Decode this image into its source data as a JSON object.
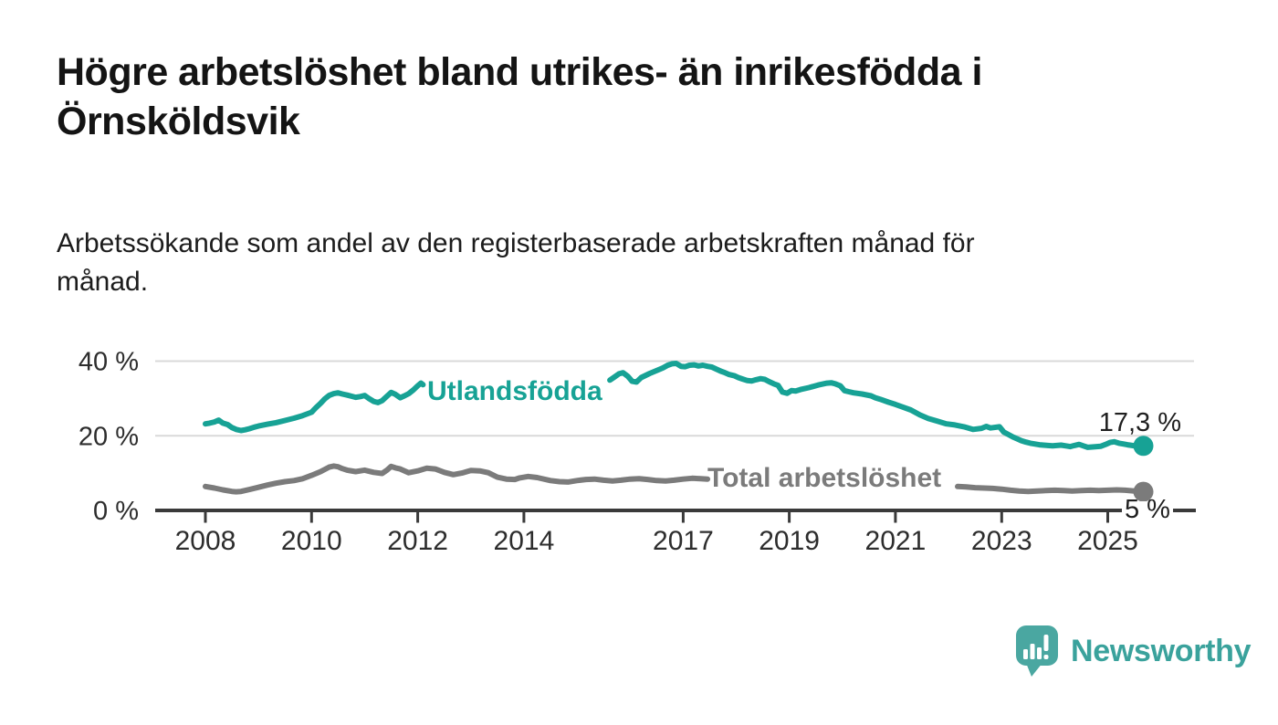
{
  "header": {
    "title": "Högre arbetslöshet bland utrikes- än inrikesfödda i\nÖrnsköldsvik",
    "subtitle": "Arbetssökande som andel av den registerbaserade arbetskraften månad för\nmånad."
  },
  "footer": {
    "brand": "Newsworthy",
    "logo_icon": "speech-bubble-bar-chart-icon"
  },
  "colors": {
    "accent_teal": "#17a295",
    "series_gray": "#7b7b7b",
    "logo_teal": "#4aa7a1",
    "logo_text_teal": "#3aa29c",
    "axis": "#3a3a3a",
    "grid": "#d9d9d9",
    "tick_label": "#2d2d2d",
    "value_label": "#1f1f1f",
    "background": "#ffffff"
  },
  "chart_data": {
    "type": "line",
    "title": "Högre arbetslöshet bland utrikes- än inrikesfödda i Örnsköldsvik",
    "xlabel": "",
    "ylabel": "Arbetssökande som andel av den registerbaserade arbetskraften",
    "unit": "%",
    "grid": "horizontal-only",
    "legend_position": "inline-labels",
    "xlim": [
      2007.05,
      2025.95
    ],
    "ylim": [
      0,
      42
    ],
    "x_ticks": [
      2008,
      2010,
      2012,
      2014,
      2017,
      2019,
      2021,
      2023,
      2025
    ],
    "y_ticks": [
      {
        "value": 0,
        "label": "0 %"
      },
      {
        "value": 20,
        "label": "20 %"
      },
      {
        "value": 40,
        "label": "40 %"
      }
    ],
    "series": [
      {
        "name": "Utlandsfödda",
        "color": "#17a295",
        "end_label": "17,3 %",
        "end_value": 17.3,
        "segments": [
          [
            [
              2008.0,
              23.2
            ],
            [
              2008.08,
              23.4
            ],
            [
              2008.17,
              23.7
            ],
            [
              2008.25,
              24.2
            ],
            [
              2008.33,
              23.4
            ],
            [
              2008.42,
              23.0
            ],
            [
              2008.5,
              22.2
            ],
            [
              2008.58,
              21.7
            ],
            [
              2008.67,
              21.4
            ],
            [
              2008.75,
              21.6
            ],
            [
              2008.83,
              21.9
            ],
            [
              2008.92,
              22.3
            ],
            [
              2009.0,
              22.6
            ],
            [
              2009.17,
              23.1
            ],
            [
              2009.33,
              23.5
            ],
            [
              2009.5,
              24.1
            ],
            [
              2009.67,
              24.7
            ],
            [
              2009.83,
              25.4
            ],
            [
              2010.0,
              26.3
            ],
            [
              2010.08,
              27.5
            ],
            [
              2010.17,
              28.7
            ],
            [
              2010.25,
              29.9
            ],
            [
              2010.33,
              30.8
            ],
            [
              2010.42,
              31.3
            ],
            [
              2010.5,
              31.5
            ],
            [
              2010.58,
              31.2
            ],
            [
              2010.67,
              30.9
            ],
            [
              2010.75,
              30.6
            ],
            [
              2010.83,
              30.3
            ],
            [
              2010.92,
              30.5
            ],
            [
              2011.0,
              30.8
            ],
            [
              2011.08,
              30.0
            ],
            [
              2011.17,
              29.2
            ],
            [
              2011.25,
              28.9
            ],
            [
              2011.33,
              29.4
            ],
            [
              2011.42,
              30.6
            ],
            [
              2011.5,
              31.6
            ],
            [
              2011.58,
              31.1
            ],
            [
              2011.67,
              30.2
            ],
            [
              2011.75,
              30.7
            ],
            [
              2011.83,
              31.3
            ],
            [
              2011.92,
              32.3
            ],
            [
              2012.0,
              33.4
            ],
            [
              2012.06,
              34.1
            ],
            [
              2012.1,
              33.7
            ]
          ],
          [
            [
              2015.62,
              34.9
            ],
            [
              2015.7,
              35.7
            ],
            [
              2015.79,
              36.6
            ],
            [
              2015.87,
              36.9
            ],
            [
              2015.96,
              35.9
            ],
            [
              2016.04,
              34.6
            ],
            [
              2016.12,
              34.4
            ],
            [
              2016.21,
              35.6
            ],
            [
              2016.37,
              36.7
            ],
            [
              2016.54,
              37.7
            ],
            [
              2016.62,
              38.2
            ],
            [
              2016.71,
              38.9
            ],
            [
              2016.79,
              39.3
            ],
            [
              2016.87,
              39.4
            ],
            [
              2016.96,
              38.6
            ],
            [
              2017.04,
              38.5
            ],
            [
              2017.12,
              38.9
            ],
            [
              2017.21,
              39.0
            ],
            [
              2017.29,
              38.7
            ],
            [
              2017.37,
              38.9
            ],
            [
              2017.46,
              38.6
            ],
            [
              2017.54,
              38.4
            ],
            [
              2017.62,
              37.9
            ],
            [
              2017.71,
              37.3
            ],
            [
              2017.79,
              36.9
            ],
            [
              2017.87,
              36.4
            ],
            [
              2017.96,
              36.1
            ],
            [
              2018.04,
              35.6
            ],
            [
              2018.12,
              35.2
            ],
            [
              2018.21,
              34.8
            ],
            [
              2018.29,
              34.7
            ],
            [
              2018.37,
              35.0
            ],
            [
              2018.46,
              35.3
            ],
            [
              2018.54,
              35.1
            ],
            [
              2018.62,
              34.5
            ],
            [
              2018.71,
              33.9
            ],
            [
              2018.79,
              33.5
            ],
            [
              2018.87,
              31.7
            ],
            [
              2018.96,
              31.4
            ],
            [
              2019.04,
              32.1
            ],
            [
              2019.12,
              32.0
            ],
            [
              2019.21,
              32.4
            ],
            [
              2019.37,
              32.9
            ],
            [
              2019.54,
              33.6
            ],
            [
              2019.71,
              34.1
            ],
            [
              2019.79,
              34.2
            ],
            [
              2019.87,
              33.9
            ],
            [
              2019.96,
              33.4
            ],
            [
              2020.04,
              32.1
            ],
            [
              2020.12,
              31.8
            ],
            [
              2020.21,
              31.5
            ],
            [
              2020.37,
              31.2
            ],
            [
              2020.54,
              30.7
            ],
            [
              2020.62,
              30.2
            ],
            [
              2020.71,
              29.8
            ],
            [
              2020.87,
              29.0
            ],
            [
              2021.0,
              28.4
            ],
            [
              2021.12,
              27.8
            ],
            [
              2021.29,
              26.9
            ],
            [
              2021.46,
              25.6
            ],
            [
              2021.62,
              24.6
            ],
            [
              2021.79,
              23.9
            ],
            [
              2021.96,
              23.2
            ],
            [
              2022.12,
              22.9
            ],
            [
              2022.29,
              22.4
            ],
            [
              2022.46,
              21.7
            ],
            [
              2022.62,
              22.0
            ],
            [
              2022.71,
              22.5
            ],
            [
              2022.79,
              22.1
            ],
            [
              2022.96,
              22.4
            ],
            [
              2023.04,
              21.0
            ],
            [
              2023.12,
              20.4
            ],
            [
              2023.21,
              19.7
            ],
            [
              2023.29,
              19.2
            ],
            [
              2023.37,
              18.7
            ],
            [
              2023.46,
              18.3
            ],
            [
              2023.54,
              18.0
            ],
            [
              2023.62,
              17.8
            ],
            [
              2023.71,
              17.6
            ],
            [
              2023.79,
              17.5
            ],
            [
              2023.87,
              17.4
            ],
            [
              2023.96,
              17.3
            ],
            [
              2024.04,
              17.4
            ],
            [
              2024.12,
              17.5
            ],
            [
              2024.21,
              17.3
            ],
            [
              2024.29,
              17.1
            ],
            [
              2024.37,
              17.4
            ],
            [
              2024.46,
              17.7
            ],
            [
              2024.54,
              17.3
            ],
            [
              2024.62,
              16.9
            ],
            [
              2024.71,
              17.0
            ],
            [
              2024.79,
              17.1
            ],
            [
              2024.87,
              17.2
            ],
            [
              2024.96,
              17.7
            ],
            [
              2025.04,
              18.2
            ],
            [
              2025.12,
              18.4
            ],
            [
              2025.21,
              18.0
            ],
            [
              2025.29,
              17.8
            ],
            [
              2025.37,
              17.6
            ],
            [
              2025.46,
              17.4
            ],
            [
              2025.54,
              17.2
            ],
            [
              2025.62,
              17.2
            ],
            [
              2025.67,
              17.3
            ]
          ]
        ]
      },
      {
        "name": "Total arbetslöshet",
        "color": "#7b7b7b",
        "end_label": "5 %",
        "end_value": 5.0,
        "segments": [
          [
            [
              2008.0,
              6.4
            ],
            [
              2008.17,
              6.0
            ],
            [
              2008.33,
              5.5
            ],
            [
              2008.5,
              5.1
            ],
            [
              2008.58,
              5.0
            ],
            [
              2008.67,
              5.1
            ],
            [
              2008.83,
              5.6
            ],
            [
              2009.0,
              6.2
            ],
            [
              2009.17,
              6.8
            ],
            [
              2009.33,
              7.3
            ],
            [
              2009.5,
              7.7
            ],
            [
              2009.67,
              8.0
            ],
            [
              2009.83,
              8.5
            ],
            [
              2010.0,
              9.4
            ],
            [
              2010.17,
              10.4
            ],
            [
              2010.33,
              11.6
            ],
            [
              2010.42,
              11.9
            ],
            [
              2010.5,
              11.7
            ],
            [
              2010.58,
              11.2
            ],
            [
              2010.67,
              10.8
            ],
            [
              2010.83,
              10.4
            ],
            [
              2011.0,
              10.8
            ],
            [
              2011.17,
              10.2
            ],
            [
              2011.33,
              9.9
            ],
            [
              2011.42,
              10.8
            ],
            [
              2011.5,
              11.8
            ],
            [
              2011.58,
              11.4
            ],
            [
              2011.67,
              11.1
            ],
            [
              2011.83,
              10.1
            ],
            [
              2012.0,
              10.6
            ],
            [
              2012.17,
              11.3
            ],
            [
              2012.33,
              11.1
            ],
            [
              2012.5,
              10.2
            ],
            [
              2012.67,
              9.6
            ],
            [
              2012.83,
              10.0
            ],
            [
              2013.0,
              10.7
            ],
            [
              2013.17,
              10.6
            ],
            [
              2013.33,
              10.1
            ],
            [
              2013.5,
              8.9
            ],
            [
              2013.67,
              8.4
            ],
            [
              2013.83,
              8.3
            ],
            [
              2013.92,
              8.7
            ],
            [
              2014.08,
              9.1
            ],
            [
              2014.25,
              8.8
            ],
            [
              2014.5,
              8.0
            ],
            [
              2014.67,
              7.7
            ],
            [
              2014.83,
              7.6
            ],
            [
              2015.0,
              8.0
            ],
            [
              2015.17,
              8.3
            ],
            [
              2015.33,
              8.4
            ],
            [
              2015.5,
              8.1
            ],
            [
              2015.67,
              7.9
            ],
            [
              2015.83,
              8.1
            ],
            [
              2016.0,
              8.4
            ],
            [
              2016.17,
              8.5
            ],
            [
              2016.33,
              8.3
            ],
            [
              2016.5,
              8.0
            ],
            [
              2016.67,
              7.9
            ],
            [
              2016.83,
              8.1
            ],
            [
              2017.0,
              8.4
            ],
            [
              2017.17,
              8.6
            ],
            [
              2017.33,
              8.5
            ],
            [
              2017.46,
              8.4
            ]
          ],
          [
            [
              2022.17,
              6.4
            ],
            [
              2022.33,
              6.3
            ],
            [
              2022.5,
              6.1
            ],
            [
              2022.67,
              6.0
            ],
            [
              2022.83,
              5.9
            ],
            [
              2023.0,
              5.7
            ],
            [
              2023.17,
              5.4
            ],
            [
              2023.33,
              5.2
            ],
            [
              2023.5,
              5.1
            ],
            [
              2023.67,
              5.2
            ],
            [
              2023.83,
              5.3
            ],
            [
              2024.0,
              5.4
            ],
            [
              2024.17,
              5.3
            ],
            [
              2024.33,
              5.2
            ],
            [
              2024.5,
              5.3
            ],
            [
              2024.67,
              5.4
            ],
            [
              2024.83,
              5.3
            ],
            [
              2025.0,
              5.4
            ],
            [
              2025.17,
              5.5
            ],
            [
              2025.33,
              5.4
            ],
            [
              2025.5,
              5.2
            ],
            [
              2025.67,
              5.0
            ]
          ]
        ]
      }
    ]
  }
}
